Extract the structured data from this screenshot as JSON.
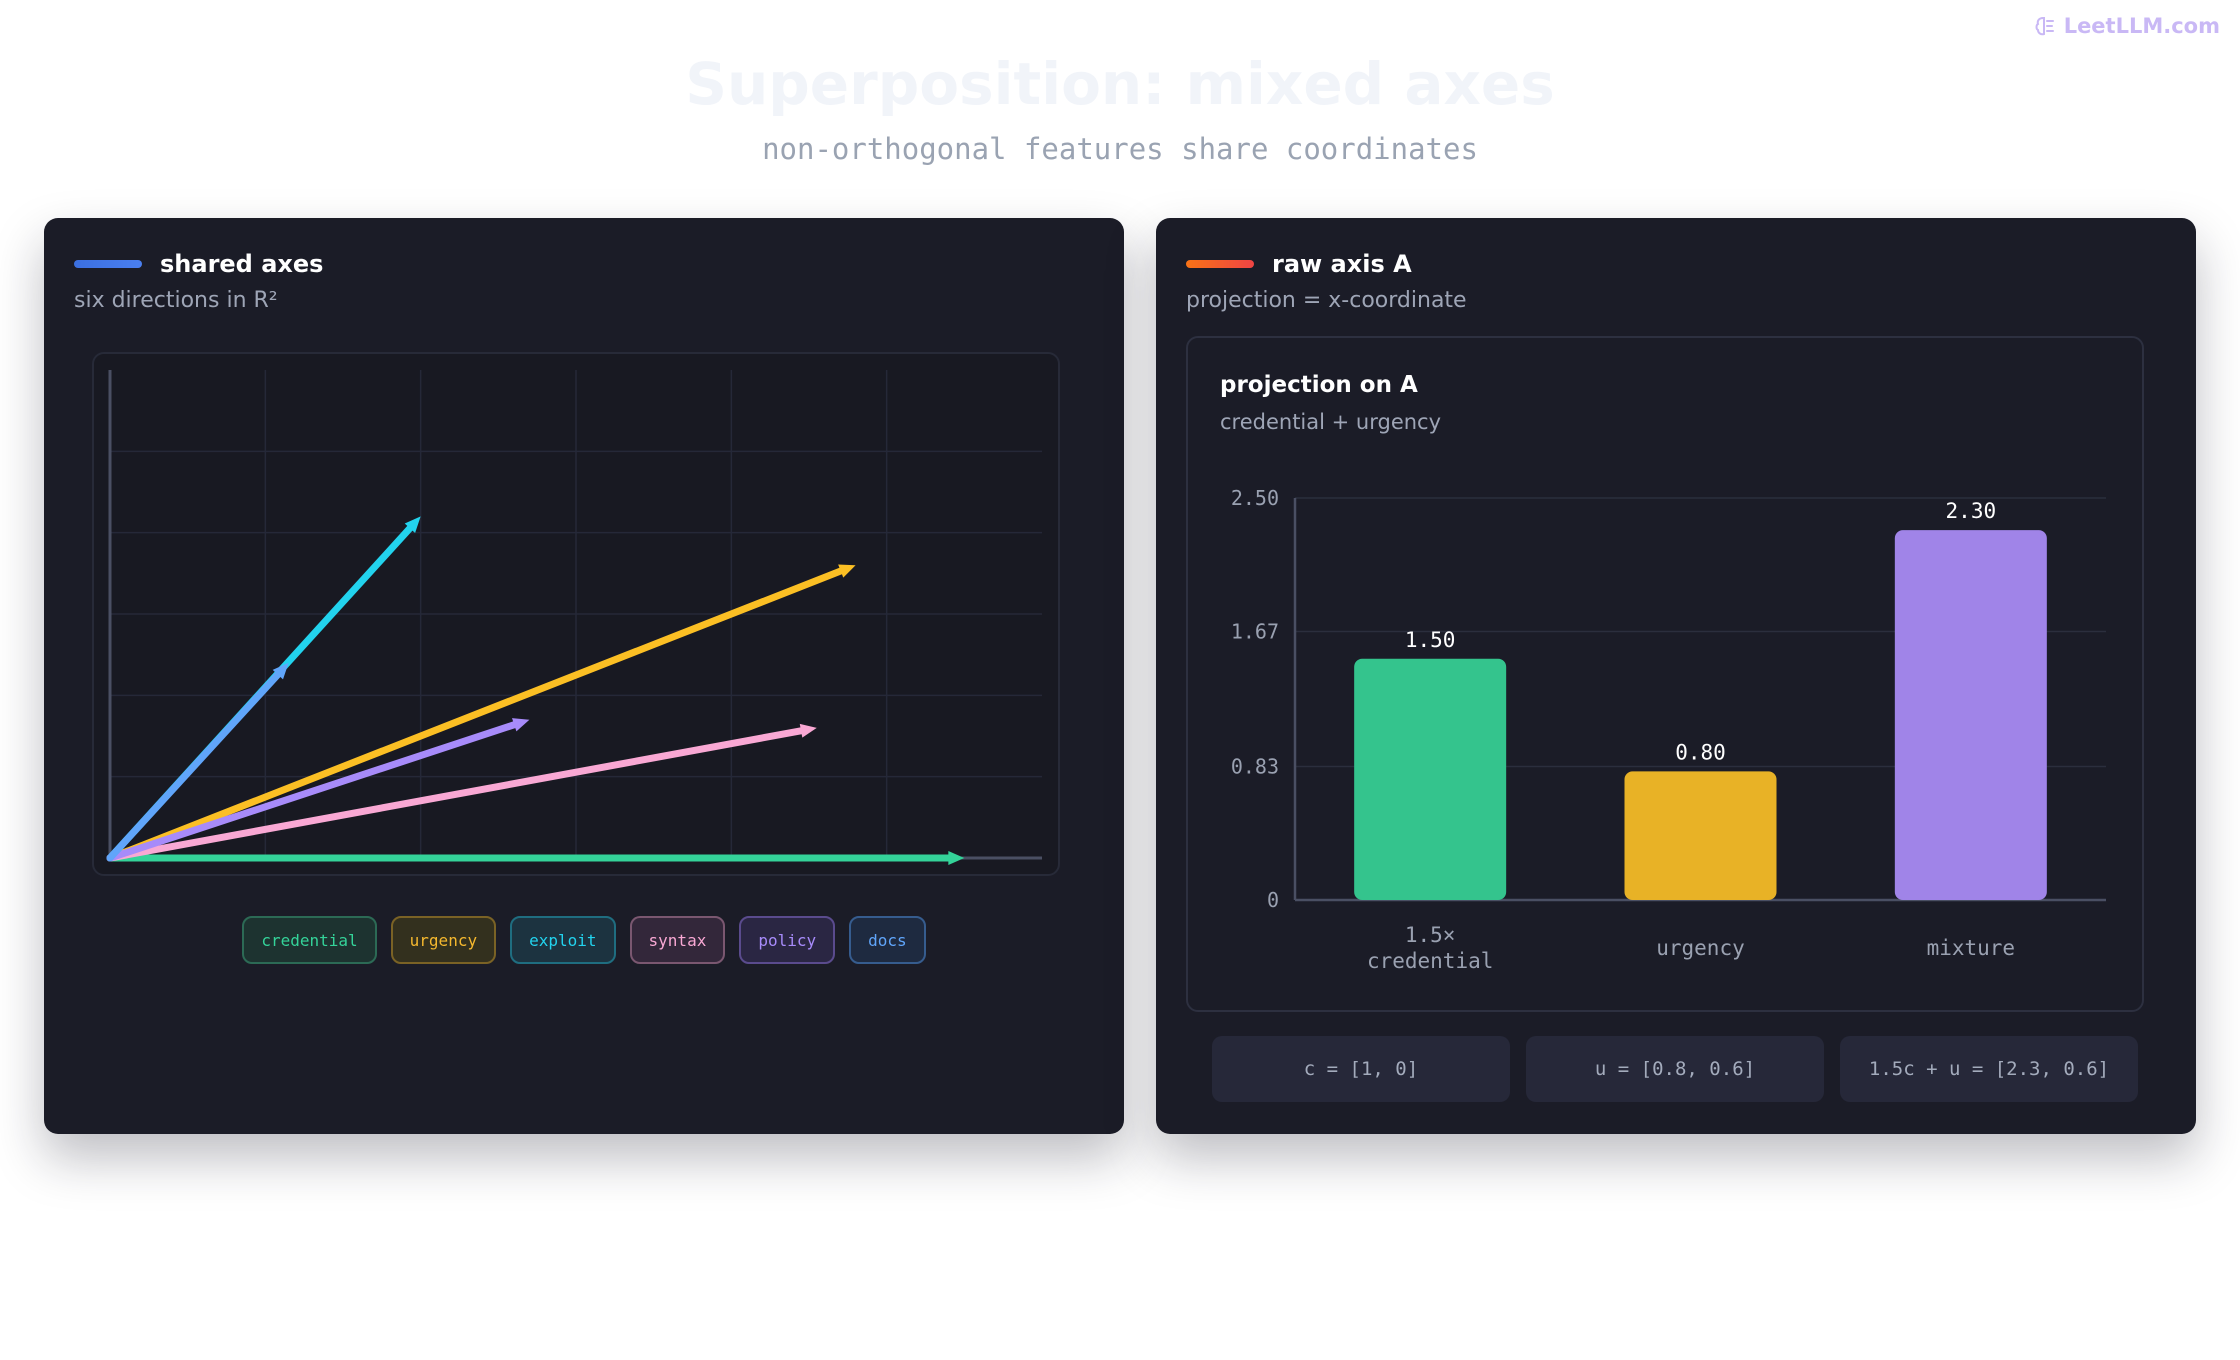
{
  "brand": {
    "label": "LeetLLM.com",
    "color": "#c9b8f5"
  },
  "page": {
    "title": "Superposition: mixed axes",
    "subtitle": "non-orthogonal features share coordinates"
  },
  "left_panel": {
    "title": "shared axes",
    "subtitle": "six directions in R²",
    "accent": "#4a7ff0",
    "legend": [
      {
        "label": "credential",
        "color": "#34d399",
        "bg": "#1d3330",
        "border": "#2c6a55"
      },
      {
        "label": "urgency",
        "color": "#f5b82e",
        "bg": "#33301e",
        "border": "#7a6225"
      },
      {
        "label": "exploit",
        "color": "#22d3ee",
        "bg": "#1c3340",
        "border": "#1f6d80"
      },
      {
        "label": "syntax",
        "color": "#f9a8d4",
        "bg": "#33273a",
        "border": "#7a5770"
      },
      {
        "label": "policy",
        "color": "#a78bfa",
        "bg": "#2a2643",
        "border": "#5a4b8d"
      },
      {
        "label": "docs",
        "color": "#60a5fa",
        "bg": "#1e2a40",
        "border": "#365c8e"
      }
    ]
  },
  "right_panel": {
    "title": "raw axis A",
    "subtitle": "projection = x-coordinate",
    "accent": "#f97316",
    "card_title": "projection on A",
    "card_subtitle": "credential + urgency",
    "formulas": [
      "c = [1, 0]",
      "u = [0.8, 0.6]",
      "1.5c + u = [2.3, 0.6]"
    ]
  },
  "chart_data": [
    {
      "type": "line",
      "title": "shared axes",
      "subtitle": "six directions in R²",
      "xlim": [
        0,
        6
      ],
      "ylim": [
        0,
        3
      ],
      "grid": true,
      "series": [
        {
          "name": "credential",
          "color": "#34d399",
          "x": [
            0,
            5.5
          ],
          "y": [
            0,
            0
          ]
        },
        {
          "name": "urgency",
          "color": "#fbbf24",
          "x": [
            0,
            4.8
          ],
          "y": [
            0,
            1.8
          ]
        },
        {
          "name": "exploit",
          "color": "#22d3ee",
          "x": [
            0,
            2.0
          ],
          "y": [
            0,
            2.1
          ]
        },
        {
          "name": "syntax",
          "color": "#f9a8d4",
          "x": [
            0,
            4.55
          ],
          "y": [
            0,
            0.8
          ]
        },
        {
          "name": "policy",
          "color": "#a78bfa",
          "x": [
            0,
            2.7
          ],
          "y": [
            0,
            0.85
          ]
        },
        {
          "name": "docs",
          "color": "#60a5fa",
          "x": [
            0,
            1.15
          ],
          "y": [
            0,
            1.2
          ]
        }
      ]
    },
    {
      "type": "bar",
      "title": "projection on A",
      "subtitle": "credential + urgency",
      "categories": [
        "1.5× credential",
        "urgency",
        "mixture"
      ],
      "values": [
        1.5,
        0.8,
        2.3
      ],
      "value_labels": [
        "1.50",
        "0.80",
        "2.30"
      ],
      "colors": [
        "#34c48d",
        "#e8b226",
        "#a084e8"
      ],
      "ylim": [
        0,
        2.5
      ],
      "yticks": [
        0,
        0.83,
        1.67,
        2.5
      ],
      "ytick_labels": [
        "0",
        "0.83",
        "1.67",
        "2.50"
      ],
      "xlabel": "",
      "ylabel": "",
      "grid": true
    }
  ]
}
